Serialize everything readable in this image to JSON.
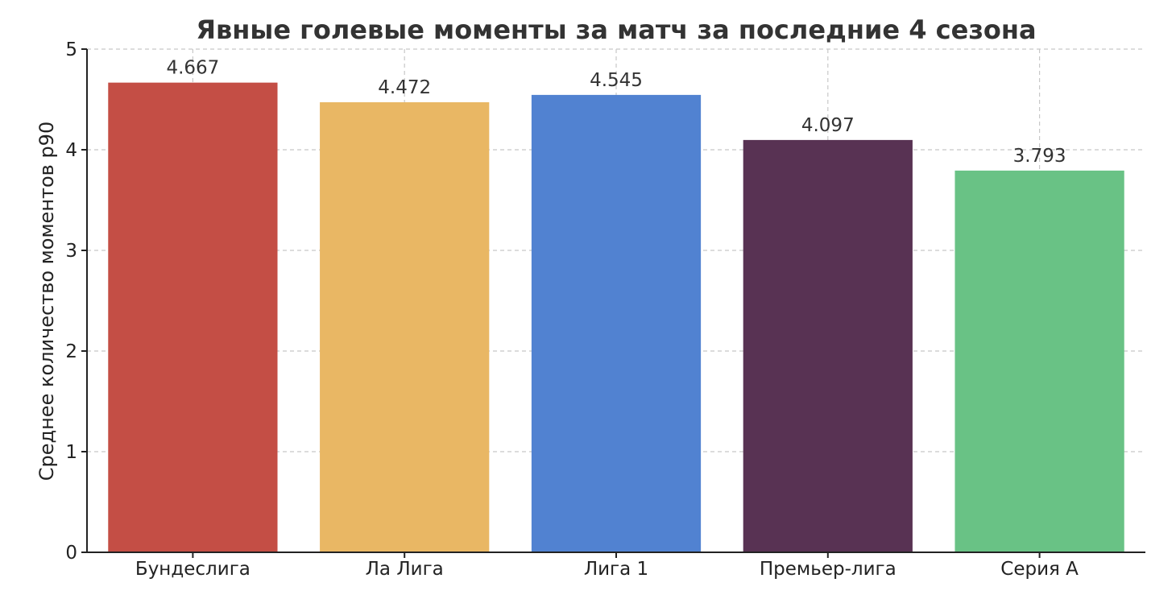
{
  "chart_data": {
    "type": "bar",
    "title": "Явные голевые моменты за матч за последние 4 сезона",
    "xlabel": "",
    "ylabel": "Среднее количество моментов p90",
    "categories": [
      "Бундеслига",
      "Ла Лига",
      "Лига 1",
      "Премьер-лига",
      "Серия А"
    ],
    "values": [
      4.667,
      4.472,
      4.545,
      4.097,
      3.793
    ],
    "value_labels": [
      "4.667",
      "4.472",
      "4.545",
      "4.097",
      "3.793"
    ],
    "colors": [
      "#c44e45",
      "#e9b764",
      "#5182d1",
      "#583253",
      "#69c285"
    ],
    "ylim": [
      0,
      5
    ],
    "yticks": [
      0,
      1,
      2,
      3,
      4,
      5
    ],
    "grid": true,
    "legend": "none"
  }
}
